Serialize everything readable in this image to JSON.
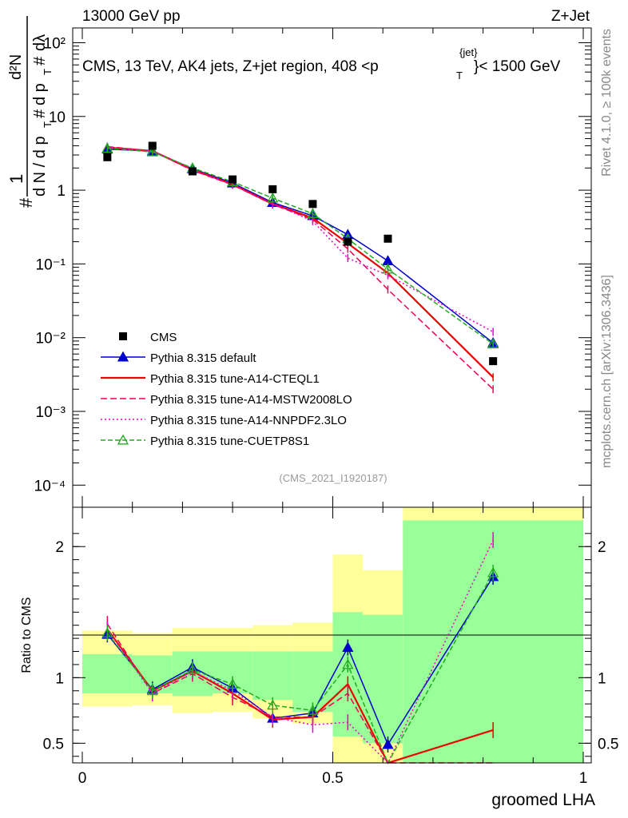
{
  "header": {
    "left": "13000 GeV pp",
    "right": "Z+Jet"
  },
  "plot_title": {
    "main": "CMS, 13 TeV, AK4 jets, Z+jet region, 408 <p",
    "sub_T": "T",
    "sup_jet": "{jet}",
    "tail": "}< 1500 GeV"
  },
  "side_labels": {
    "rivet": "Rivet 4.1.0, ≥ 100k events",
    "mcplots": "mcplots.cern.ch [arXiv:1306.3436]"
  },
  "analysis_id": "(CMS_2021_I1920187)",
  "ylabel_main": {
    "n": "1",
    "hash1": "#",
    "dN": "d N / d p",
    "T": "T",
    "hash2": "#",
    "d2N": "d²N",
    "dpT": "d p",
    "T2": "T",
    "dl": "dλ",
    "hash3": "#"
  },
  "ylabel_ratio": "Ratio to CMS",
  "xlabel": "groomed LHA",
  "chart_data": {
    "type": "line",
    "x": [
      0.05,
      0.14,
      0.22,
      0.3,
      0.38,
      0.46,
      0.53,
      0.61,
      0.82
    ],
    "xlim": [
      0,
      1
    ],
    "main_ylim_log10": [
      -4.3,
      2.2
    ],
    "main_yticks": [
      "10⁻⁴",
      "10⁻³",
      "10⁻²",
      "10⁻¹",
      "1",
      "10",
      "10²"
    ],
    "main_ytick_values": [
      0.0001,
      0.001,
      0.01,
      0.1,
      1,
      10,
      100
    ],
    "ratio_ylim": [
      0.35,
      2.3
    ],
    "ratio_yticks": [
      "0.5",
      "1",
      "2"
    ],
    "ratio_ytick_values": [
      0.5,
      1,
      2
    ],
    "xticks": [
      "0",
      "0.5",
      "1"
    ],
    "xtick_values": [
      0,
      0.5,
      1
    ],
    "data": {
      "name": "CMS",
      "values": [
        2.8,
        4.0,
        1.8,
        1.4,
        1.03,
        0.65,
        0.2,
        0.22,
        0.0048
      ]
    },
    "series": [
      {
        "name": "Pythia 8.315 default",
        "color": "#0000cc",
        "dash": "",
        "marker": "triangle-filled",
        "values": [
          3.6,
          3.4,
          1.95,
          1.25,
          0.68,
          0.45,
          0.25,
          0.11,
          0.0085
        ],
        "ratio": [
          1.33,
          0.91,
          1.08,
          0.92,
          0.69,
          0.73,
          1.23,
          0.49,
          1.77
        ]
      },
      {
        "name": "Pythia 8.315 tune-A14-CTEQL1",
        "color": "#ee0000",
        "dash": "",
        "marker": "none",
        "values": [
          3.8,
          3.4,
          1.9,
          1.2,
          0.65,
          0.42,
          0.19,
          0.075,
          0.0029
        ],
        "ratio": [
          1.37,
          0.9,
          1.05,
          0.88,
          0.68,
          0.7,
          0.95,
          0.2,
          0.6
        ]
      },
      {
        "name": "Pythia 8.315 tune-A14-MSTW2008LO",
        "color": "#ee0055",
        "dash": "8,4",
        "marker": "none",
        "values": [
          3.9,
          3.4,
          1.85,
          1.18,
          0.64,
          0.4,
          0.16,
          0.045,
          0.002
        ],
        "ratio": [
          1.41,
          0.88,
          1.03,
          0.85,
          0.7,
          0.7,
          0.88,
          0.18,
          0.2
        ]
      },
      {
        "name": "Pythia 8.315 tune-A14-NNPDF2.3LO",
        "color": "#ee00cc",
        "dash": "2,3",
        "marker": "none",
        "values": [
          3.8,
          3.4,
          1.9,
          1.2,
          0.66,
          0.38,
          0.12,
          0.07,
          0.012
        ],
        "ratio": [
          1.37,
          0.88,
          1.05,
          0.9,
          0.7,
          0.64,
          0.66,
          0.22,
          2.05
        ]
      },
      {
        "name": "Pythia 8.315 tune-CUETP8S1",
        "color": "#22aa22",
        "dash": "6,3",
        "marker": "triangle-open",
        "values": [
          3.7,
          3.3,
          2.0,
          1.3,
          0.78,
          0.48,
          0.22,
          0.085,
          0.0082
        ],
        "ratio": [
          1.34,
          0.9,
          1.06,
          0.95,
          0.79,
          0.75,
          1.1,
          0.25,
          1.8
        ]
      }
    ],
    "uncertainty_bands": {
      "edges": [
        0.0,
        0.1,
        0.18,
        0.26,
        0.34,
        0.42,
        0.5,
        0.56,
        0.64,
        1.0
      ],
      "green_lo": [
        0.88,
        0.88,
        0.86,
        0.88,
        0.83,
        0.74,
        0.55,
        0.5,
        0.35
      ],
      "green_hi": [
        1.18,
        1.17,
        1.2,
        1.2,
        1.2,
        1.2,
        1.5,
        1.48,
        2.2
      ],
      "yellow_lo": [
        0.78,
        0.79,
        0.73,
        0.74,
        0.69,
        0.65,
        0.35,
        0.35,
        0.35
      ],
      "yellow_hi": [
        1.36,
        1.34,
        1.38,
        1.38,
        1.4,
        1.42,
        1.94,
        1.82,
        2.3
      ]
    }
  }
}
